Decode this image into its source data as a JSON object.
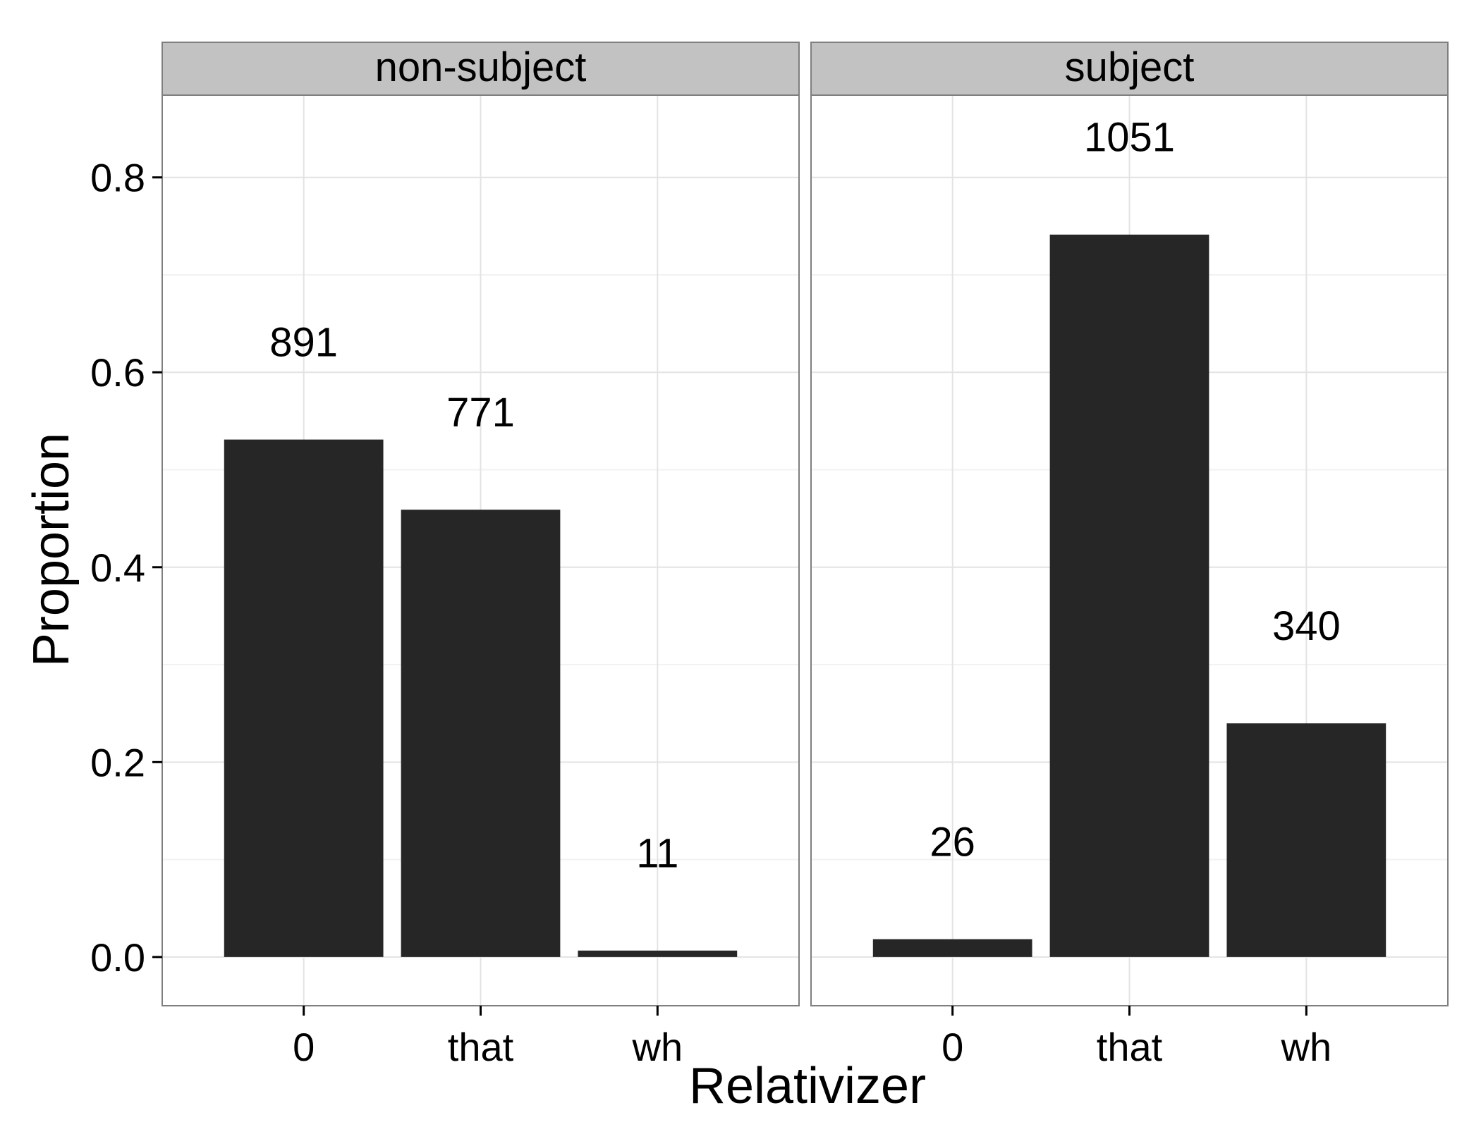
{
  "chart_data": {
    "type": "bar",
    "facet_by": "subject / non-subject",
    "xlabel": "Relativizer",
    "ylabel": "Proportion",
    "ylim": [
      -0.05,
      0.8844
    ],
    "yticks": [
      "0.0",
      "0.2",
      "0.4",
      "0.6",
      "0.8"
    ],
    "categories": [
      "0",
      "that",
      "wh"
    ],
    "grid": true,
    "bar_color": "#262626",
    "panels": [
      {
        "label": "non-subject",
        "values": [
          0.531,
          0.459,
          0.0066
        ],
        "counts": [
          "891",
          "771",
          "11"
        ]
      },
      {
        "label": "subject",
        "values": [
          0.0183,
          0.7413,
          0.2398
        ],
        "counts": [
          "26",
          "1051",
          "340"
        ]
      }
    ]
  }
}
